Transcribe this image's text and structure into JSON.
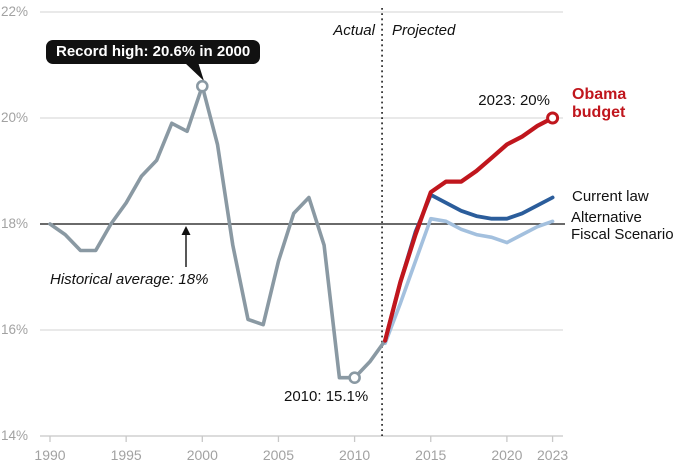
{
  "chart_data": {
    "type": "line",
    "unit": "percent of GDP",
    "ylim": [
      14,
      22
    ],
    "xlim": [
      1990,
      2023
    ],
    "grid": "horizontal",
    "y_ticks": [
      {
        "value": 22,
        "label": "22%"
      },
      {
        "value": 20,
        "label": "20%"
      },
      {
        "value": 18,
        "label": "18%"
      },
      {
        "value": 16,
        "label": "16%"
      },
      {
        "value": 14,
        "label": "14%"
      }
    ],
    "x_ticks": [
      {
        "value": 1990,
        "label": "1990"
      },
      {
        "value": 1995,
        "label": "1995"
      },
      {
        "value": 2000,
        "label": "2000"
      },
      {
        "value": 2005,
        "label": "2005"
      },
      {
        "value": 2010,
        "label": "2010"
      },
      {
        "value": 2015,
        "label": "2015"
      },
      {
        "value": 2020,
        "label": "2020"
      },
      {
        "value": 2023,
        "label": "2023"
      }
    ],
    "divider": {
      "year": 2012,
      "left_label": "Actual",
      "right_label": "Projected"
    },
    "reference_line": {
      "value": 18,
      "label": "Historical average: 18%",
      "color": "#111111"
    },
    "series": [
      {
        "name": "Actual",
        "color": "#8a99a3",
        "x": [
          1990,
          1991,
          1992,
          1993,
          1994,
          1995,
          1996,
          1997,
          1998,
          1999,
          2000,
          2001,
          2002,
          2003,
          2004,
          2005,
          2006,
          2007,
          2008,
          2009,
          2010,
          2011,
          2012
        ],
        "values": [
          18.0,
          17.8,
          17.5,
          17.5,
          18.0,
          18.4,
          18.9,
          19.2,
          19.9,
          19.75,
          20.6,
          19.5,
          17.6,
          16.2,
          16.1,
          17.3,
          18.2,
          18.5,
          17.6,
          15.1,
          15.1,
          15.4,
          15.8
        ]
      },
      {
        "name": "Obama budget",
        "color": "#c0161d",
        "x": [
          2012,
          2013,
          2014,
          2015,
          2016,
          2017,
          2018,
          2019,
          2020,
          2021,
          2022,
          2023
        ],
        "values": [
          15.8,
          16.9,
          17.8,
          18.6,
          18.8,
          18.8,
          19.0,
          19.25,
          19.5,
          19.65,
          19.85,
          20.0
        ]
      },
      {
        "name": "Current law",
        "color": "#2b5d9b",
        "x": [
          2012,
          2013,
          2014,
          2015,
          2016,
          2017,
          2018,
          2019,
          2020,
          2021,
          2022,
          2023
        ],
        "values": [
          15.8,
          16.9,
          17.85,
          18.55,
          18.4,
          18.25,
          18.15,
          18.1,
          18.1,
          18.2,
          18.35,
          18.5
        ]
      },
      {
        "name": "Alternative Fiscal Scenario",
        "color": "#a3c0de",
        "x": [
          2012,
          2013,
          2014,
          2015,
          2016,
          2017,
          2018,
          2019,
          2020,
          2021,
          2022,
          2023
        ],
        "values": [
          15.75,
          16.5,
          17.3,
          18.1,
          18.05,
          17.9,
          17.8,
          17.75,
          17.65,
          17.8,
          17.95,
          18.05
        ]
      }
    ],
    "markers": [
      {
        "series": "Actual",
        "year": 2000,
        "value": 20.6,
        "color": "#8a99a3"
      },
      {
        "series": "Actual",
        "year": 2010,
        "value": 15.1,
        "color": "#8a99a3"
      },
      {
        "series": "Obama budget",
        "year": 2023,
        "value": 20.0,
        "color": "#c0161d"
      }
    ],
    "legend_position": "right"
  },
  "annotations": {
    "record_high": "Record high: 20.6% in 2000",
    "historical_average": "Historical average: 18%",
    "low_2010": "2010: 15.1%",
    "obama_2023": "2023: 20%",
    "actual": "Actual",
    "projected": "Projected",
    "legend_obama": "Obama budget",
    "legend_current": "Current law",
    "legend_alternative": "Alternative Fiscal Scenario"
  },
  "colors": {
    "actual_line": "#8a99a3",
    "obama_budget": "#c0161d",
    "current_law": "#2b5d9b",
    "alternative_fiscal": "#a3c0de",
    "reference_line": "#111111",
    "gridline": "#dcdcdc",
    "axis": "#c8c8c8",
    "tick_label": "#a2a2a2",
    "callout_bg": "#111111"
  }
}
